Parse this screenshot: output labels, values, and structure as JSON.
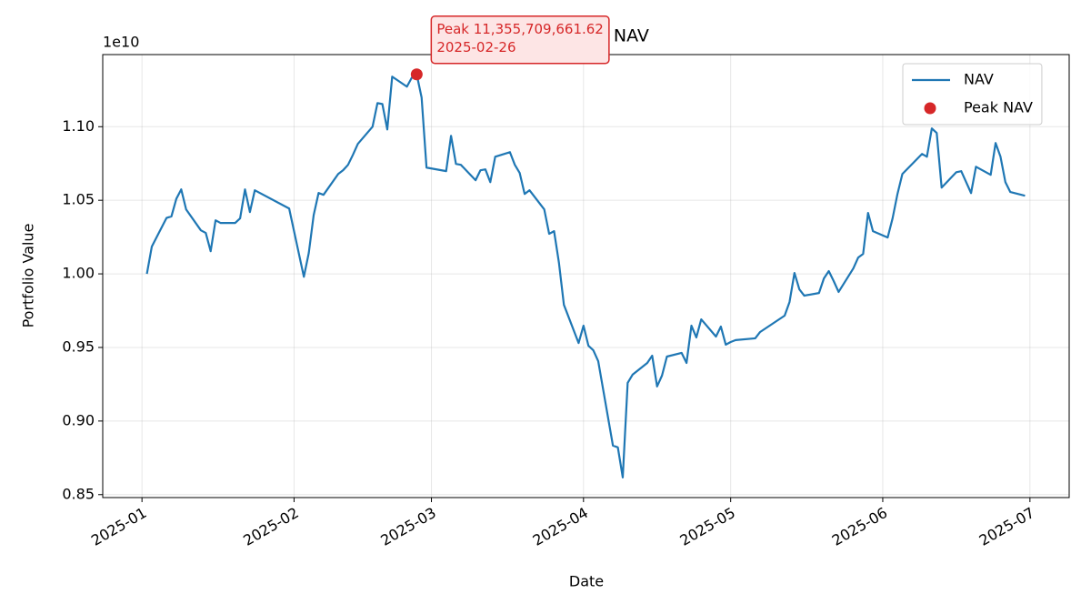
{
  "chart_data": {
    "type": "line",
    "title": "Episode 1 NAV",
    "x_label": "Date",
    "y_label": "Portfolio Value",
    "y_offset_label": "1e10",
    "x": [
      "2025-01-02",
      "2025-01-03",
      "2025-01-06",
      "2025-01-07",
      "2025-01-08",
      "2025-01-09",
      "2025-01-10",
      "2025-01-13",
      "2025-01-14",
      "2025-01-15",
      "2025-01-16",
      "2025-01-17",
      "2025-01-20",
      "2025-01-21",
      "2025-01-22",
      "2025-01-23",
      "2025-01-24",
      "2025-01-31",
      "2025-02-03",
      "2025-02-04",
      "2025-02-05",
      "2025-02-06",
      "2025-02-07",
      "2025-02-10",
      "2025-02-11",
      "2025-02-12",
      "2025-02-13",
      "2025-02-14",
      "2025-02-17",
      "2025-02-18",
      "2025-02-19",
      "2025-02-20",
      "2025-02-21",
      "2025-02-24",
      "2025-02-25",
      "2025-02-26",
      "2025-02-27",
      "2025-02-28",
      "2025-03-04",
      "2025-03-05",
      "2025-03-06",
      "2025-03-07",
      "2025-03-10",
      "2025-03-11",
      "2025-03-12",
      "2025-03-13",
      "2025-03-14",
      "2025-03-17",
      "2025-03-18",
      "2025-03-19",
      "2025-03-20",
      "2025-03-21",
      "2025-03-24",
      "2025-03-25",
      "2025-03-26",
      "2025-03-27",
      "2025-03-28",
      "2025-03-31",
      "2025-04-01",
      "2025-04-02",
      "2025-04-03",
      "2025-04-04",
      "2025-04-07",
      "2025-04-08",
      "2025-04-09",
      "2025-04-10",
      "2025-04-11",
      "2025-04-14",
      "2025-04-15",
      "2025-04-16",
      "2025-04-17",
      "2025-04-18",
      "2025-04-21",
      "2025-04-22",
      "2025-04-23",
      "2025-04-24",
      "2025-04-25",
      "2025-04-28",
      "2025-04-29",
      "2025-04-30",
      "2025-05-01",
      "2025-05-02",
      "2025-05-06",
      "2025-05-07",
      "2025-05-12",
      "2025-05-13",
      "2025-05-14",
      "2025-05-15",
      "2025-05-16",
      "2025-05-19",
      "2025-05-20",
      "2025-05-21",
      "2025-05-22",
      "2025-05-23",
      "2025-05-26",
      "2025-05-27",
      "2025-05-28",
      "2025-05-29",
      "2025-05-30",
      "2025-06-02",
      "2025-06-03",
      "2025-06-04",
      "2025-06-05",
      "2025-06-09",
      "2025-06-10",
      "2025-06-11",
      "2025-06-12",
      "2025-06-13",
      "2025-06-16",
      "2025-06-17",
      "2025-06-19",
      "2025-06-20",
      "2025-06-23",
      "2025-06-24",
      "2025-06-25",
      "2025-06-26",
      "2025-06-27",
      "2025-06-30"
    ],
    "series": [
      {
        "name": "NAV",
        "color": "#1f77b4",
        "values": [
          1.0,
          1.0185,
          1.038,
          1.039,
          1.051,
          1.0574,
          1.0438,
          1.0296,
          1.0278,
          1.0154,
          1.0364,
          1.0346,
          1.0346,
          1.0377,
          1.0574,
          1.042,
          1.0568,
          1.0444,
          0.998,
          1.0142,
          1.04,
          1.055,
          1.0537,
          1.0679,
          1.0704,
          1.0741,
          1.0809,
          1.0883,
          1.1,
          1.116,
          1.1154,
          1.0981,
          1.134,
          1.1272,
          1.1333,
          1.135570966162,
          1.1198,
          1.0722,
          1.0698,
          1.0938,
          1.0747,
          1.0741,
          1.0636,
          1.0704,
          1.071,
          1.0623,
          1.0796,
          1.0827,
          1.0741,
          1.0685,
          1.0543,
          1.0568,
          1.0438,
          1.0272,
          1.029,
          1.0074,
          0.979,
          0.953,
          0.9648,
          0.9512,
          0.9481,
          0.9407,
          0.8833,
          0.8821,
          0.8617,
          0.9259,
          0.9315,
          0.9395,
          0.9444,
          0.9235,
          0.9309,
          0.9438,
          0.9463,
          0.9395,
          0.9648,
          0.9568,
          0.9691,
          0.9574,
          0.9642,
          0.9519,
          0.9537,
          0.955,
          0.9562,
          0.9605,
          0.9716,
          0.9809,
          1.0006,
          0.9895,
          0.9852,
          0.987,
          0.9969,
          1.0019,
          0.9951,
          0.9877,
          1.0037,
          1.0111,
          1.0136,
          1.0414,
          1.029,
          1.0247,
          1.0377,
          1.0543,
          1.0679,
          1.0815,
          1.0796,
          1.0988,
          1.0957,
          1.0586,
          1.0691,
          1.0698,
          1.0549,
          1.0728,
          1.0673,
          1.0889,
          1.0796,
          1.0623,
          1.0556,
          1.0531
        ]
      }
    ],
    "peak": {
      "name": "Peak NAV",
      "color": "#d62728",
      "x": "2025-02-26",
      "y": 1.135570966162,
      "annotation": [
        "Peak 11,355,709,661.62",
        "2025-02-26"
      ]
    },
    "xlim": [
      "2024-12-24",
      "2025-07-09"
    ],
    "xticks": [
      {
        "value": "2025-01-01",
        "label": "2025-01"
      },
      {
        "value": "2025-02-01",
        "label": "2025-02"
      },
      {
        "value": "2025-03-01",
        "label": "2025-03"
      },
      {
        "value": "2025-04-01",
        "label": "2025-04"
      },
      {
        "value": "2025-05-01",
        "label": "2025-05"
      },
      {
        "value": "2025-06-01",
        "label": "2025-06"
      },
      {
        "value": "2025-07-01",
        "label": "2025-07"
      }
    ],
    "ylim": [
      0.848,
      1.149
    ],
    "yticks": [
      0.85,
      {
        "value": 0.9,
        "label": "0.90"
      },
      0.95,
      {
        "value": 1.0,
        "label": "1.00"
      },
      1.05,
      {
        "value": 1.1,
        "label": "1.10"
      }
    ],
    "grid": true,
    "legend": "upper right"
  }
}
